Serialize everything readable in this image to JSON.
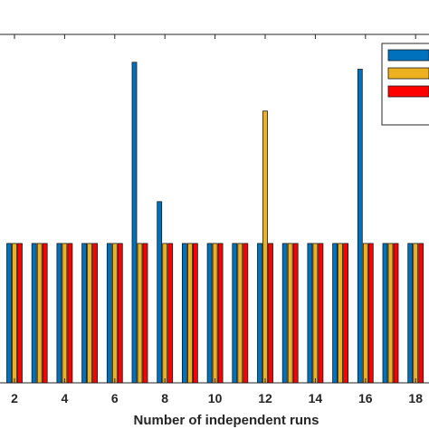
{
  "chart_data": {
    "type": "bar",
    "xlabel": "Number of independent runs",
    "ylabel": "",
    "title": "",
    "x": [
      1,
      2,
      3,
      4,
      5,
      6,
      7,
      8,
      9,
      10,
      11,
      12,
      13,
      14,
      15,
      16,
      17,
      18
    ],
    "xticks": [
      2,
      4,
      6,
      8,
      10,
      12,
      14,
      16,
      18
    ],
    "ylim": [
      0,
      2.5
    ],
    "series": [
      {
        "color": "#0072BD",
        "values": [
          1,
          1,
          1,
          1,
          1,
          1,
          2.3,
          1.3,
          1,
          1,
          1,
          1,
          1,
          1,
          1,
          2.25,
          1,
          1
        ]
      },
      {
        "color": "#EDB120",
        "values": [
          1,
          1,
          1,
          1,
          1,
          1,
          1,
          1,
          1,
          1,
          1,
          1.95,
          1,
          1,
          1,
          1,
          1,
          1
        ]
      },
      {
        "color": "#FF0000",
        "values": [
          1,
          1,
          1,
          1,
          1,
          1,
          1,
          1,
          1,
          1,
          1,
          1,
          1,
          1,
          1,
          1,
          1,
          1
        ]
      }
    ],
    "legend": {
      "placement": "top-right",
      "entries": [
        "",
        "",
        ""
      ]
    },
    "grid": false
  }
}
